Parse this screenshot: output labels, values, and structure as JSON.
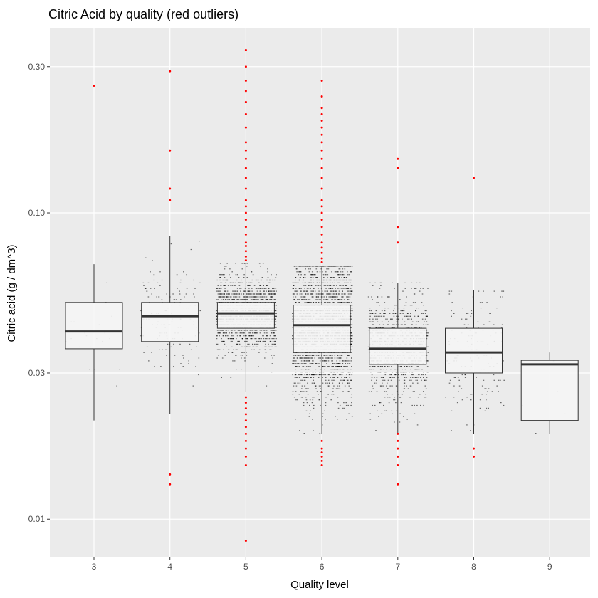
{
  "chart_data": {
    "type": "box",
    "title": "Citric Acid by quality (red outliers)",
    "xlabel": "Quality level",
    "ylabel": "Citric acid (g / dm^3)",
    "y_scale": "log10",
    "ylim": [
      0.0075,
      0.4
    ],
    "y_ticks": [
      0.01,
      0.03,
      0.1,
      0.3
    ],
    "y_tick_labels": [
      "0.01",
      "0.03",
      "0.10",
      "0.30"
    ],
    "categories": [
      "3",
      "4",
      "5",
      "6",
      "7",
      "8",
      "9"
    ],
    "boxes": [
      {
        "quality": "3",
        "lower_whisker": 0.021,
        "q1": 0.036,
        "median": 0.041,
        "q3": 0.051,
        "upper_whisker": 0.068
      },
      {
        "quality": "4",
        "lower_whisker": 0.022,
        "q1": 0.038,
        "median": 0.046,
        "q3": 0.051,
        "upper_whisker": 0.084
      },
      {
        "quality": "5",
        "lower_whisker": 0.026,
        "q1": 0.042,
        "median": 0.047,
        "q3": 0.051,
        "upper_whisker": 0.068
      },
      {
        "quality": "6",
        "lower_whisker": 0.019,
        "q1": 0.035,
        "median": 0.043,
        "q3": 0.05,
        "upper_whisker": 0.067
      },
      {
        "quality": "7",
        "lower_whisker": 0.019,
        "q1": 0.032,
        "median": 0.036,
        "q3": 0.042,
        "upper_whisker": 0.059
      },
      {
        "quality": "8",
        "lower_whisker": 0.019,
        "q1": 0.03,
        "median": 0.035,
        "q3": 0.042,
        "upper_whisker": 0.056
      },
      {
        "quality": "9",
        "lower_whisker": 0.019,
        "q1": 0.021,
        "median": 0.032,
        "q3": 0.033,
        "upper_whisker": 0.035
      }
    ],
    "point_counts": [
      20,
      163,
      1457,
      2198,
      880,
      175,
      5
    ],
    "outliers": [
      {
        "quality": "3",
        "values": [
          0.26
        ]
      },
      {
        "quality": "4",
        "values": [
          0.29,
          0.16,
          0.12,
          0.11,
          0.014,
          0.013
        ]
      },
      {
        "quality": "5",
        "values": [
          0.34,
          0.3,
          0.27,
          0.25,
          0.23,
          0.21,
          0.19,
          0.17,
          0.16,
          0.15,
          0.14,
          0.13,
          0.12,
          0.11,
          0.105,
          0.1,
          0.095,
          0.09,
          0.085,
          0.08,
          0.078,
          0.075,
          0.072,
          0.07,
          0.025,
          0.024,
          0.023,
          0.022,
          0.021,
          0.02,
          0.019,
          0.018,
          0.017,
          0.016,
          0.015,
          0.0085
        ]
      },
      {
        "quality": "6",
        "values": [
          0.27,
          0.24,
          0.22,
          0.21,
          0.2,
          0.19,
          0.18,
          0.17,
          0.16,
          0.15,
          0.14,
          0.13,
          0.12,
          0.11,
          0.105,
          0.1,
          0.095,
          0.09,
          0.085,
          0.08,
          0.077,
          0.074,
          0.071,
          0.069,
          0.018,
          0.017,
          0.0165,
          0.016,
          0.0155,
          0.015
        ]
      },
      {
        "quality": "7",
        "values": [
          0.15,
          0.14,
          0.09,
          0.08,
          0.019,
          0.018,
          0.017,
          0.016,
          0.015,
          0.013
        ]
      },
      {
        "quality": "8",
        "values": [
          0.13,
          0.017,
          0.016
        ]
      }
    ],
    "grid": true,
    "legend": "none",
    "colors": {
      "panel": "#ebebeb",
      "grid_major": "#ffffff",
      "box_fill": "#f5f5f5",
      "box_line": "#333333",
      "jitter_point": "#000000",
      "outlier": "#ff0000"
    }
  }
}
